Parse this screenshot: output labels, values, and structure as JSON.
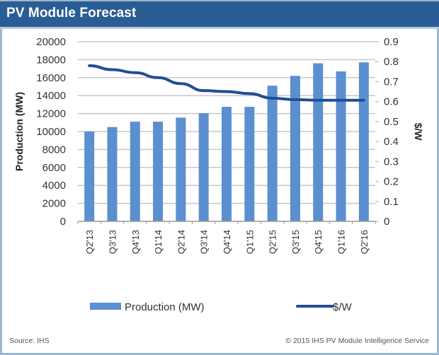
{
  "header": {
    "title": "PV Module Forecast"
  },
  "footer": {
    "source": "Source: IHS",
    "copyright": "© 2015 IHS  PV Module Intelligence Service"
  },
  "colors": {
    "header_bg": "#2b5d95",
    "bar": "#5b8fcf",
    "line": "#1f4e96",
    "grid": "#c8c8c8"
  },
  "chart_data": {
    "type": "bar",
    "title": "PV Module Forecast",
    "categories": [
      "Q2'13",
      "Q3'13",
      "Q4'13",
      "Q1'14",
      "Q2'14",
      "Q3'14",
      "Q4'14",
      "Q1'15",
      "Q2'15",
      "Q3'15",
      "Q4'15",
      "Q1'16",
      "Q2'16"
    ],
    "series": [
      {
        "name": "Production (MW)",
        "type": "bar",
        "axis": "left",
        "values": [
          10000,
          10500,
          11100,
          11100,
          11550,
          12050,
          12750,
          12750,
          15100,
          16200,
          17600,
          16700,
          17700
        ]
      },
      {
        "name": "$/W",
        "type": "line",
        "axis": "right",
        "values": [
          0.78,
          0.76,
          0.745,
          0.72,
          0.69,
          0.655,
          0.65,
          0.64,
          0.617,
          0.61,
          0.607,
          0.607,
          0.607
        ]
      }
    ],
    "ylabel": "Production (MW)",
    "y2label": "$/W",
    "xlabel": "",
    "ylim": [
      0,
      20000
    ],
    "y2lim": [
      0,
      0.9
    ],
    "yticks": [
      "0",
      "2000",
      "4000",
      "6000",
      "8000",
      "10000",
      "12000",
      "14000",
      "16000",
      "18000",
      "20000"
    ],
    "y2ticks": [
      "0",
      "0.1",
      "0.2",
      "0.3",
      "0.4",
      "0.5",
      "0.6",
      "0.7",
      "0.8",
      "0.9"
    ],
    "grid": true,
    "legend": "bottom",
    "legend_entries": [
      "Production (MW)",
      "$/W"
    ]
  }
}
